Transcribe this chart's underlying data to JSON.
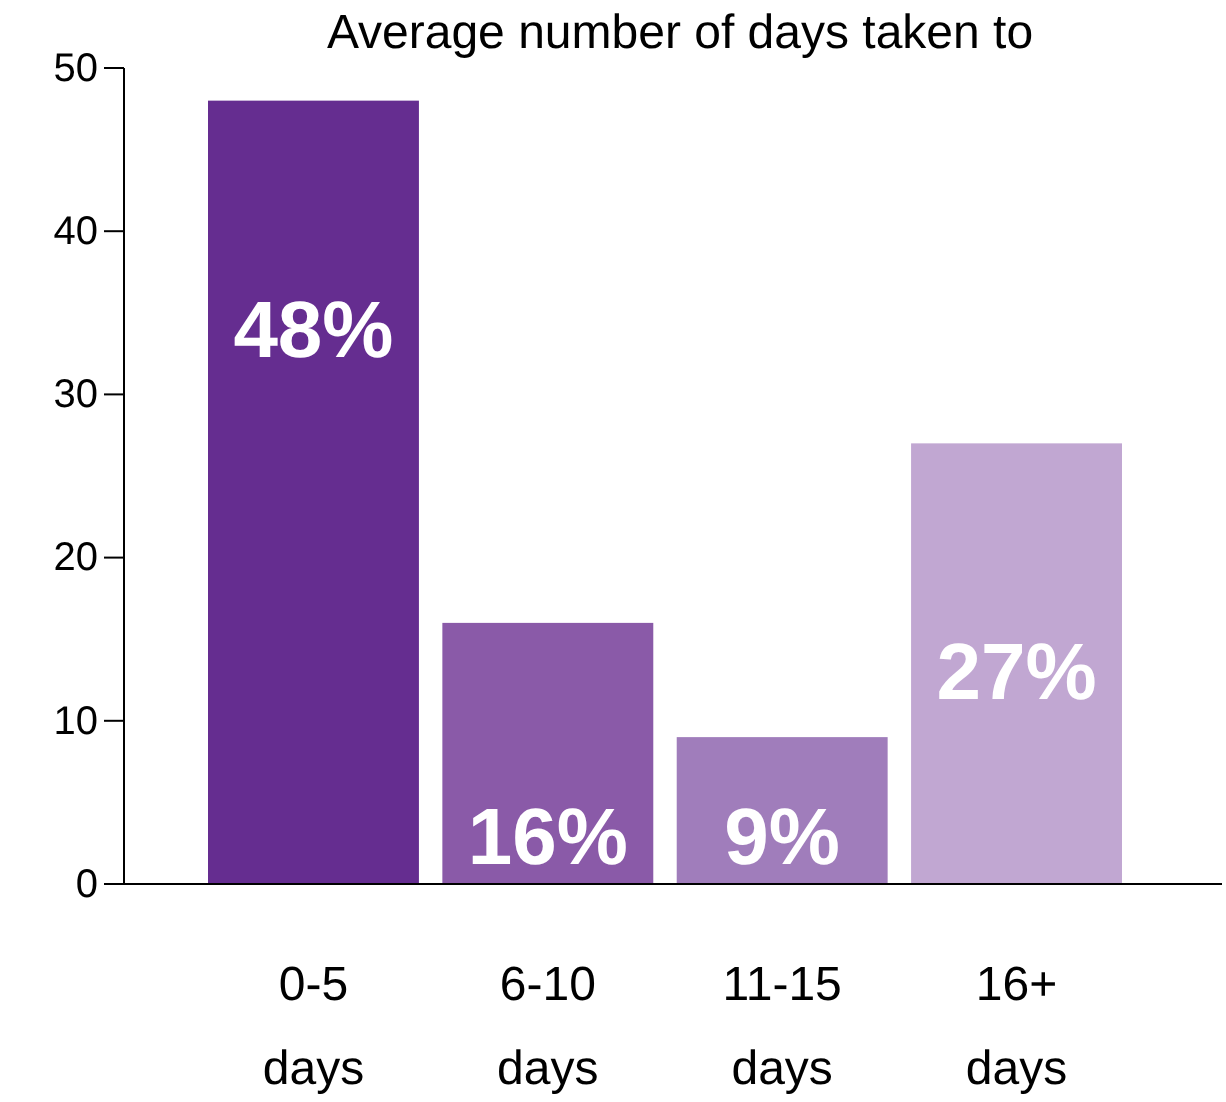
{
  "chart_data": {
    "type": "bar",
    "title": "Average number of days taken to",
    "categories": [
      "0-5 days",
      "6-10 days",
      "11-15 days",
      "16+ days"
    ],
    "values": [
      48,
      16,
      9,
      27
    ],
    "colors": [
      "#652d90",
      "#8a5aa8",
      "#a07dbb",
      "#c1a7d2"
    ],
    "value_labels": [
      "48%",
      "16%",
      "9%",
      "27%"
    ],
    "ylim": [
      0,
      50
    ],
    "yticks": [
      0,
      10,
      20,
      30,
      40,
      50
    ]
  }
}
